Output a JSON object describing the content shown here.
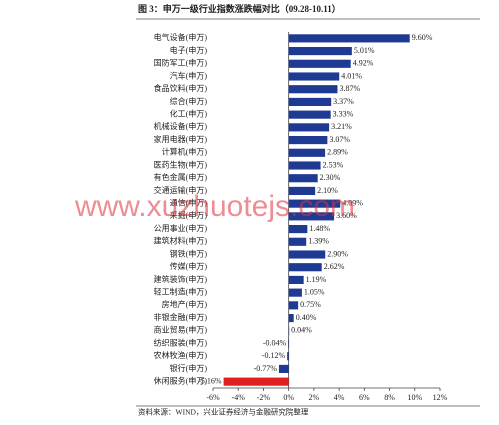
{
  "chart_data": {
    "type": "barh",
    "title": "图 3：申万一级行业指数涨跌幅对比（09.28-10.11）",
    "source": "资料来源：WIND，兴业证券经济与金融研究院整理",
    "watermark": "www.xuzhuotejs.com",
    "categories": [
      "电气设备(申万)",
      "电子(申万)",
      "国防军工(申万)",
      "汽车(申万)",
      "食品饮料(申万)",
      "综合(申万)",
      "化工(申万)",
      "机械设备(申万)",
      "家用电器(申万)",
      "计算机(申万)",
      "医药生物(申万)",
      "有色金属(申万)",
      "交通运输(申万)",
      "通信(申万)",
      "采掘(申万)",
      "公用事业(申万)",
      "建筑材料(申万)",
      "钢铁(申万)",
      "传媒(申万)",
      "建筑装饰(申万)",
      "轻工制造(申万)",
      "房地产(申万)",
      "非银金融(申万)",
      "商业贸易(申万)",
      "纺织服装(申万)",
      "农林牧渔(申万)",
      "银行(申万)",
      "休闲服务(申万)"
    ],
    "values": [
      9.6,
      5.01,
      4.92,
      4.01,
      3.87,
      3.37,
      3.33,
      3.21,
      3.07,
      2.89,
      2.53,
      2.3,
      2.1,
      4.09,
      3.6,
      1.48,
      1.39,
      2.9,
      2.62,
      1.19,
      1.05,
      0.75,
      0.4,
      0.04,
      -0.04,
      -0.12,
      -0.77,
      -5.16
    ],
    "value_labels": [
      "9.60%",
      "5.01%",
      "4.92%",
      "4.01%",
      "3.87%",
      "3.37%",
      "3.33%",
      "3.21%",
      "3.07%",
      "2.89%",
      "2.53%",
      "2.30%",
      "2.10%",
      "4.09%",
      "3.60%",
      "1.48%",
      "1.39%",
      "2.90%",
      "2.62%",
      "1.19%",
      "1.05%",
      "0.75%",
      "0.40%",
      "0.04%",
      "-0.04%",
      "-0.12%",
      "-0.77%",
      "-5.16%"
    ],
    "colors": [
      "#1f3a93",
      "#1f3a93",
      "#1f3a93",
      "#1f3a93",
      "#1f3a93",
      "#1f3a93",
      "#1f3a93",
      "#1f3a93",
      "#1f3a93",
      "#1f3a93",
      "#1f3a93",
      "#1f3a93",
      "#1f3a93",
      "#1f3a93",
      "#1f3a93",
      "#1f3a93",
      "#1f3a93",
      "#1f3a93",
      "#1f3a93",
      "#1f3a93",
      "#1f3a93",
      "#1f3a93",
      "#1f3a93",
      "#1f3a93",
      "#1f3a93",
      "#1f3a93",
      "#1f3a93",
      "#e02020"
    ],
    "xlim": [
      -6,
      12
    ],
    "xticks": [
      {
        "value": -6,
        "label": "-6%"
      },
      {
        "value": -4,
        "label": "-4%"
      },
      {
        "value": -2,
        "label": "-2%"
      },
      {
        "value": 0,
        "label": "0%"
      },
      {
        "value": 2,
        "label": "2%"
      },
      {
        "value": 4,
        "label": "4%"
      },
      {
        "value": 6,
        "label": "6%"
      },
      {
        "value": 8,
        "label": "8%"
      },
      {
        "value": 10,
        "label": "10%"
      },
      {
        "value": 12,
        "label": "12%"
      }
    ]
  }
}
